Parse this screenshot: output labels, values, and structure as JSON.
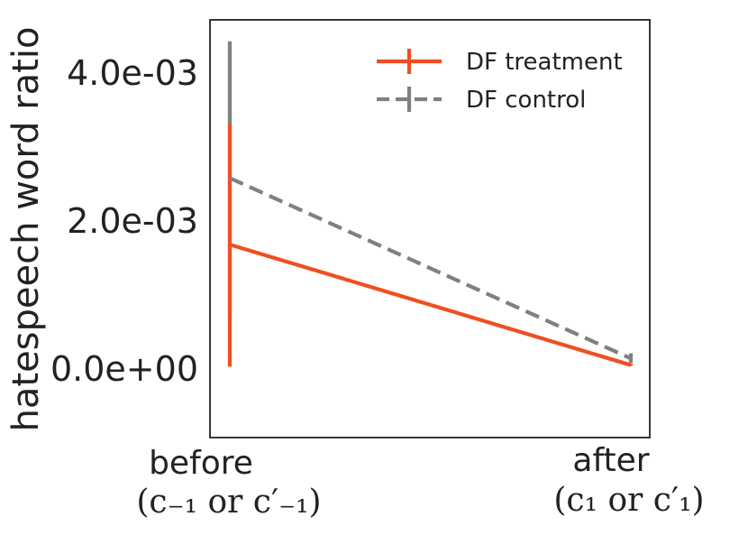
{
  "chart_data": {
    "type": "line",
    "categories": [
      "before",
      "after"
    ],
    "category_sublabels": [
      "(c₋₁ or c′₋₁)",
      "(c₁ or c′₁)"
    ],
    "ylabel": "hatespeech word ratio",
    "yticks": [
      "0.0e+00",
      "2.0e-03",
      "4.0e-03"
    ],
    "ylim": [
      -0.00093,
      0.00472
    ],
    "grid": false,
    "legend_position": "top-right",
    "series": [
      {
        "name": "DF treatment",
        "color": "#f04e23",
        "dash": "solid",
        "values": [
          0.00168,
          5e-05
        ],
        "err_low": [
          3e-05,
          4e-05
        ],
        "err_high": [
          0.00331,
          7e-05
        ]
      },
      {
        "name": "DF control",
        "color": "#808080",
        "dash": "dashed",
        "values": [
          0.00258,
          0.00014
        ],
        "err_low": [
          0.00073,
          8e-05
        ],
        "err_high": [
          0.00443,
          0.00021
        ]
      }
    ]
  }
}
